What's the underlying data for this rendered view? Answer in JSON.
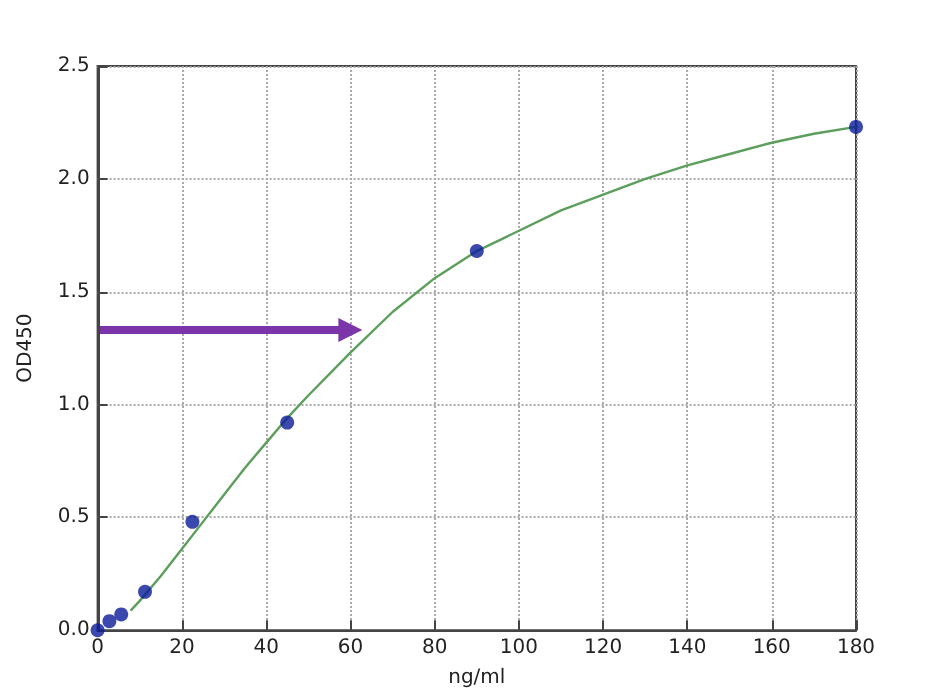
{
  "chart_data": {
    "type": "scatter",
    "xlabel": "ng/ml",
    "ylabel": "OD450",
    "series": [
      {
        "color": "#0a1a9a",
        "marker": "circle",
        "x": [
          0,
          2.8,
          5.6,
          11.25,
          22.5,
          45,
          90,
          180
        ],
        "values": [
          0.0,
          0.04,
          0.07,
          0.17,
          0.48,
          0.92,
          1.68,
          2.23
        ]
      },
      {
        "type": "line",
        "marker": "none",
        "color": "#5c9e5c",
        "x": [
          8,
          10,
          15,
          20,
          25,
          30,
          35,
          40,
          45,
          50,
          60,
          70,
          80,
          90,
          100,
          110,
          120,
          130,
          140,
          150,
          160,
          170,
          180
        ],
        "values": [
          0.09,
          0.13,
          0.24,
          0.36,
          0.48,
          0.6,
          0.72,
          0.83,
          0.94,
          1.04,
          1.23,
          1.41,
          1.56,
          1.68,
          1.77,
          1.86,
          1.93,
          2.0,
          2.06,
          2.11,
          2.16,
          2.2,
          2.23
        ]
      }
    ],
    "xlim": [
      0,
      180
    ],
    "xticks": [
      0,
      20,
      40,
      60,
      80,
      100,
      120,
      140,
      160,
      180
    ],
    "ylim": [
      0,
      2.5
    ],
    "yticks": [
      {
        "value": 0,
        "label": "0.0"
      },
      {
        "value": 0.5,
        "label": "0.5"
      },
      {
        "value": 1,
        "label": "1.0"
      },
      {
        "value": 1.5,
        "label": "1.5"
      },
      {
        "value": 2,
        "label": "2.0"
      },
      {
        "value": 2.5,
        "label": "2.5"
      }
    ],
    "grid": true,
    "line_style": "solid"
  }
}
